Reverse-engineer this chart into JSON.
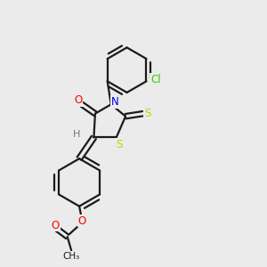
{
  "background_color": "#ebebeb",
  "bond_color": "#1a1a1a",
  "line_width": 1.6,
  "atom_colors": {
    "O": "#ff0000",
    "N": "#0000ee",
    "S": "#cccc00",
    "Cl": "#33cc00",
    "H": "#777777",
    "C": "#1a1a1a"
  },
  "figsize": [
    3.0,
    3.0
  ],
  "dpi": 100
}
